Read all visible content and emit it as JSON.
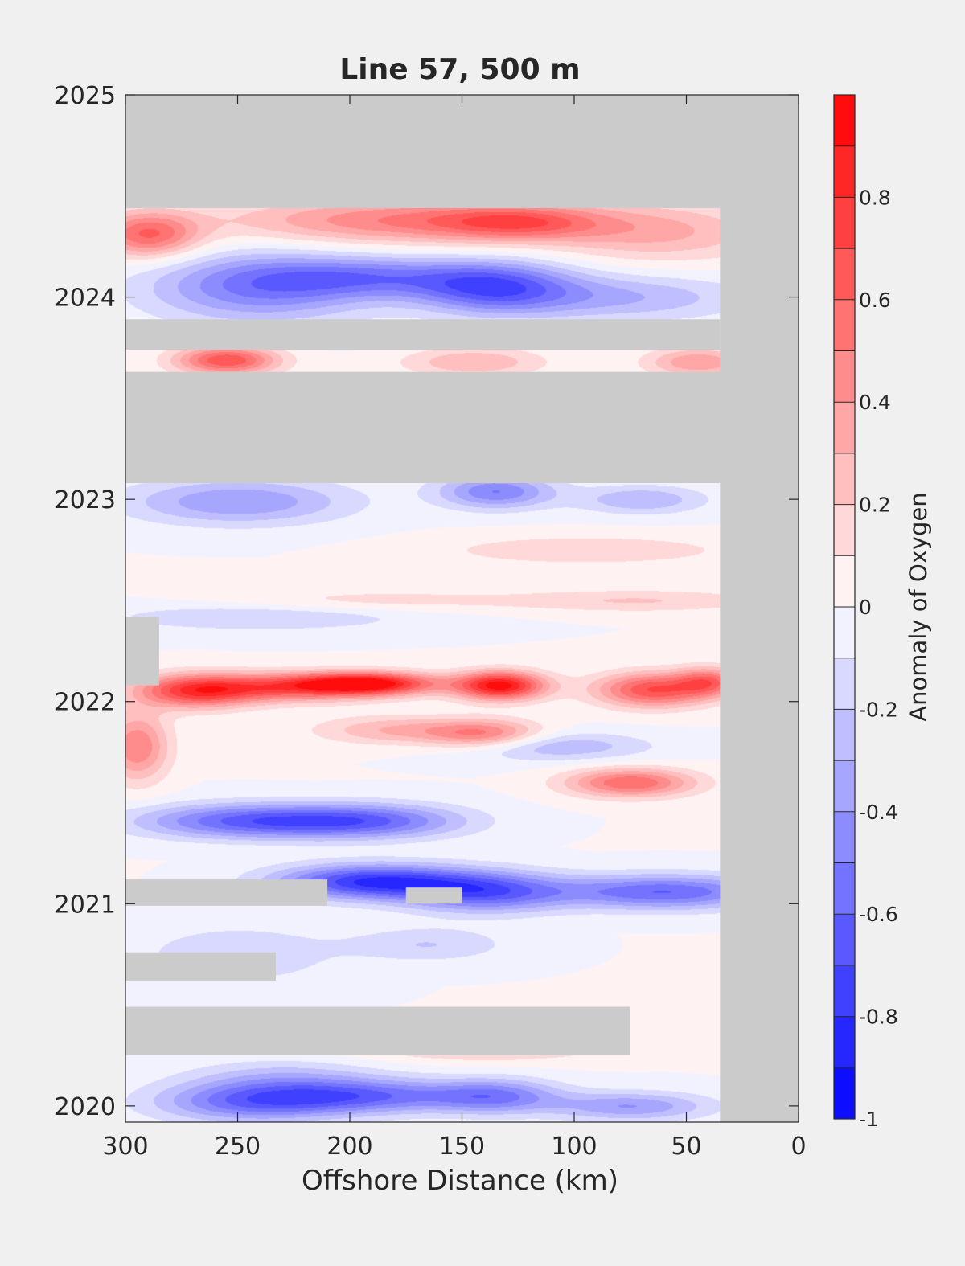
{
  "chart_data": {
    "type": "heatmap",
    "subtype": "filled-contour",
    "title": "Line 57, 500 m",
    "xlabel": "Offshore Distance (km)",
    "ylabel": "",
    "x_reversed": true,
    "xlim": [
      0,
      300
    ],
    "ylim": [
      2019.92,
      2025
    ],
    "x_ticks": [
      300,
      250,
      200,
      150,
      100,
      50,
      0
    ],
    "y_ticks": [
      2020,
      2021,
      2022,
      2023,
      2024,
      2025
    ],
    "grid": false,
    "colorbar": {
      "label": "Anomaly of Oxygen",
      "range": [
        -1,
        1
      ],
      "step": 0.1,
      "tick_labels": [
        "-1",
        "-0.8",
        "-0.6",
        "-0.4",
        "-0.2",
        "0",
        "0.2",
        "0.4",
        "0.6",
        "0.8"
      ],
      "tick_values": [
        -1,
        -0.8,
        -0.6,
        -0.4,
        -0.2,
        0,
        0.2,
        0.4,
        0.6,
        0.8
      ],
      "colormap": "blue-white-red",
      "cold_color": "#0000ff",
      "warm_color": "#ff0000",
      "nodata_color": "#cbcbcb"
    },
    "data_extent_x": [
      35,
      300
    ],
    "nodata_bands": [
      {
        "x": [
          0,
          300
        ],
        "y": [
          2024.44,
          2025
        ]
      },
      {
        "x": [
          0,
          35
        ],
        "y": [
          2019.92,
          2025
        ]
      },
      {
        "x": [
          0,
          300
        ],
        "y": [
          2023.08,
          2023.63
        ]
      },
      {
        "x": [
          35,
          300
        ],
        "y": [
          2023.74,
          2023.89
        ]
      },
      {
        "x": [
          210,
          300
        ],
        "y": [
          2020.99,
          2021.12
        ]
      },
      {
        "x": [
          150,
          175
        ],
        "y": [
          2021.0,
          2021.08
        ]
      },
      {
        "x": [
          233,
          300
        ],
        "y": [
          2020.62,
          2020.76
        ]
      },
      {
        "x": [
          75,
          300
        ],
        "y": [
          2020.25,
          2020.49
        ]
      },
      {
        "x": [
          285,
          300
        ],
        "y": [
          2022.08,
          2022.42
        ]
      }
    ],
    "features": [
      {
        "x": 290,
        "y": 2024.31,
        "value": 0.6,
        "sx": 16,
        "sy": 0.08
      },
      {
        "x": 175,
        "y": 2024.38,
        "value": 0.5,
        "sx": 55,
        "sy": 0.08
      },
      {
        "x": 125,
        "y": 2024.37,
        "value": 0.4,
        "sx": 25,
        "sy": 0.06
      },
      {
        "x": 62,
        "y": 2024.32,
        "value": 0.3,
        "sx": 35,
        "sy": 0.1
      },
      {
        "x": 240,
        "y": 2024.05,
        "value": -0.5,
        "sx": 35,
        "sy": 0.12
      },
      {
        "x": 190,
        "y": 2024.1,
        "value": -0.4,
        "sx": 35,
        "sy": 0.07
      },
      {
        "x": 136,
        "y": 2024.05,
        "value": -0.6,
        "sx": 25,
        "sy": 0.09
      },
      {
        "x": 80,
        "y": 2024.0,
        "value": -0.3,
        "sx": 40,
        "sy": 0.08
      },
      {
        "x": 255,
        "y": 2023.69,
        "value": 0.7,
        "sx": 16,
        "sy": 0.05
      },
      {
        "x": 145,
        "y": 2023.68,
        "value": 0.3,
        "sx": 22,
        "sy": 0.05
      },
      {
        "x": 45,
        "y": 2023.68,
        "value": 0.4,
        "sx": 16,
        "sy": 0.05
      },
      {
        "x": 250,
        "y": 2022.99,
        "value": -0.4,
        "sx": 35,
        "sy": 0.08
      },
      {
        "x": 135,
        "y": 2023.04,
        "value": -0.5,
        "sx": 18,
        "sy": 0.06
      },
      {
        "x": 70,
        "y": 2023.0,
        "value": -0.3,
        "sx": 20,
        "sy": 0.05
      },
      {
        "x": 95,
        "y": 2022.75,
        "value": 0.2,
        "sx": 45,
        "sy": 0.05
      },
      {
        "x": 240,
        "y": 2022.42,
        "value": -0.2,
        "sx": 50,
        "sy": 0.05
      },
      {
        "x": 190,
        "y": 2022.5,
        "value": 0.15,
        "sx": 50,
        "sy": 0.04
      },
      {
        "x": 70,
        "y": 2022.5,
        "value": 0.2,
        "sx": 40,
        "sy": 0.04
      },
      {
        "x": 270,
        "y": 2022.05,
        "value": 0.6,
        "sx": 18,
        "sy": 0.06
      },
      {
        "x": 235,
        "y": 2022.07,
        "value": 0.6,
        "sx": 30,
        "sy": 0.05
      },
      {
        "x": 193,
        "y": 2022.09,
        "value": 0.95,
        "sx": 22,
        "sy": 0.04
      },
      {
        "x": 133,
        "y": 2022.08,
        "value": 0.95,
        "sx": 14,
        "sy": 0.05
      },
      {
        "x": 65,
        "y": 2022.06,
        "value": 0.7,
        "sx": 18,
        "sy": 0.06
      },
      {
        "x": 40,
        "y": 2022.1,
        "value": 0.5,
        "sx": 10,
        "sy": 0.05
      },
      {
        "x": 180,
        "y": 2021.86,
        "value": 0.3,
        "sx": 25,
        "sy": 0.05
      },
      {
        "x": 140,
        "y": 2021.84,
        "value": 0.5,
        "sx": 18,
        "sy": 0.05
      },
      {
        "x": 295,
        "y": 2021.78,
        "value": 0.5,
        "sx": 10,
        "sy": 0.12
      },
      {
        "x": 110,
        "y": 2021.78,
        "value": -0.3,
        "sx": 30,
        "sy": 0.05
      },
      {
        "x": 75,
        "y": 2021.6,
        "value": 0.6,
        "sx": 20,
        "sy": 0.05
      },
      {
        "x": 245,
        "y": 2021.41,
        "value": -0.6,
        "sx": 35,
        "sy": 0.06
      },
      {
        "x": 190,
        "y": 2021.41,
        "value": -0.5,
        "sx": 30,
        "sy": 0.06
      },
      {
        "x": 190,
        "y": 2021.11,
        "value": -0.8,
        "sx": 30,
        "sy": 0.06
      },
      {
        "x": 140,
        "y": 2021.06,
        "value": -0.6,
        "sx": 25,
        "sy": 0.07
      },
      {
        "x": 60,
        "y": 2021.06,
        "value": -0.6,
        "sx": 35,
        "sy": 0.06
      },
      {
        "x": 250,
        "y": 2020.75,
        "value": -0.2,
        "sx": 30,
        "sy": 0.1
      },
      {
        "x": 165,
        "y": 2020.8,
        "value": -0.2,
        "sx": 25,
        "sy": 0.06
      },
      {
        "x": 230,
        "y": 2020.15,
        "value": -0.2,
        "sx": 30,
        "sy": 0.06
      },
      {
        "x": 140,
        "y": 2020.3,
        "value": 0.3,
        "sx": 35,
        "sy": 0.05
      },
      {
        "x": 245,
        "y": 2020.02,
        "value": -0.5,
        "sx": 30,
        "sy": 0.07
      },
      {
        "x": 195,
        "y": 2020.05,
        "value": -0.55,
        "sx": 35,
        "sy": 0.06
      },
      {
        "x": 135,
        "y": 2020.05,
        "value": -0.45,
        "sx": 20,
        "sy": 0.06
      },
      {
        "x": 75,
        "y": 2020.0,
        "value": -0.4,
        "sx": 25,
        "sy": 0.05
      }
    ]
  }
}
